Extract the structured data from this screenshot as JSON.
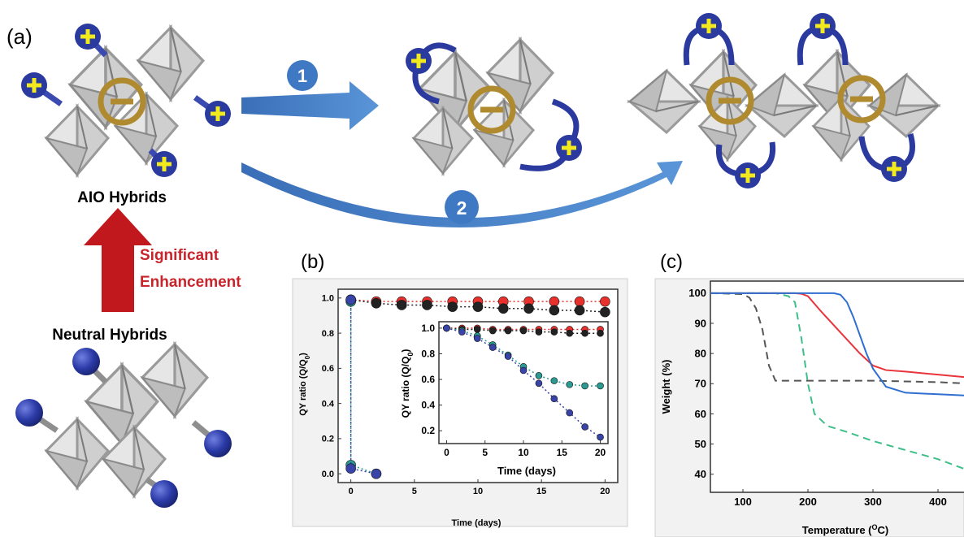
{
  "panel_a": {
    "label": "(a)",
    "step1": "1",
    "step2": "2",
    "aio_label": "AIO Hybrids",
    "neutral_label": "Neutral Hybrids",
    "enhancement_line1": "Significant",
    "enhancement_line2": "Enhancement",
    "plus_glyph": "+",
    "colors": {
      "cation_blue": "#2b3a9e",
      "plus_yellow": "#f2ea1c",
      "anion_ring": "#b08a2e",
      "arrow_blue": "#3f79c4",
      "up_arrow_red": "#c0181c",
      "enhancement_text": "#c8242b",
      "octahedron_gray": "#d8d8d8"
    }
  },
  "panel_b": {
    "label": "(b)",
    "ylabel": "QY ratio (Q/Q",
    "ylabel_sub": "0",
    "ylabel_close": ")",
    "xlabel": "Time (days)",
    "inset_ylabel": "QY ratio (Q/Q",
    "inset_xlabel": "Time (days)"
  },
  "panel_c": {
    "label": "(c)",
    "ylabel": "Weight (%)",
    "xlabel_pre": "Temperature (",
    "xlabel_sup": "O",
    "xlabel_post": "C)"
  },
  "chart_data": [
    {
      "type": "scatter",
      "panel": "b-main",
      "xlim": [
        -1,
        21
      ],
      "ylim": [
        -0.05,
        1.05
      ],
      "xticks": [
        "0",
        "5",
        "10",
        "15",
        "20"
      ],
      "yticks": [
        "0.0",
        "0.2",
        "0.4",
        "0.6",
        "0.8",
        "1.0"
      ],
      "series": [
        {
          "color": "#e8312c",
          "x": [
            0,
            2,
            4,
            6,
            8,
            10,
            12,
            14,
            16,
            18,
            20
          ],
          "values": [
            0.99,
            0.98,
            0.98,
            0.98,
            0.98,
            0.98,
            0.98,
            0.98,
            0.98,
            0.98,
            0.98
          ]
        },
        {
          "color": "#222222",
          "x": [
            0,
            2,
            4,
            6,
            8,
            10,
            12,
            14,
            16,
            18,
            20
          ],
          "values": [
            0.99,
            0.97,
            0.96,
            0.96,
            0.95,
            0.95,
            0.94,
            0.94,
            0.93,
            0.93,
            0.92
          ]
        },
        {
          "color": "#2a9a93",
          "x": [
            0,
            0,
            2
          ],
          "values": [
            0.98,
            0.05,
            0.0
          ]
        },
        {
          "color": "#3844a8",
          "x": [
            0,
            0,
            2
          ],
          "values": [
            0.99,
            0.03,
            0.0
          ]
        }
      ]
    },
    {
      "type": "scatter",
      "panel": "b-inset",
      "xlim": [
        -1,
        21
      ],
      "ylim": [
        0.1,
        1.05
      ],
      "xticks": [
        "0",
        "5",
        "10",
        "15",
        "20"
      ],
      "yticks": [
        "0.2",
        "0.4",
        "0.6",
        "0.8",
        "1.0"
      ],
      "series": [
        {
          "color": "#e8312c",
          "x": [
            0,
            2,
            4,
            6,
            8,
            10,
            12,
            14,
            16,
            18,
            20
          ],
          "values": [
            1.0,
            1.0,
            1.0,
            0.99,
            0.99,
            0.99,
            0.99,
            0.99,
            0.99,
            0.99,
            0.99
          ]
        },
        {
          "color": "#222222",
          "x": [
            0,
            2,
            4,
            6,
            8,
            10,
            12,
            14,
            16,
            18,
            20
          ],
          "values": [
            1.0,
            0.99,
            0.99,
            0.98,
            0.98,
            0.98,
            0.97,
            0.97,
            0.96,
            0.96,
            0.96
          ]
        },
        {
          "color": "#2a9a93",
          "x": [
            0,
            2,
            4,
            6,
            8,
            10,
            12,
            14,
            16,
            18,
            20
          ],
          "values": [
            1.0,
            0.98,
            0.94,
            0.87,
            0.79,
            0.7,
            0.63,
            0.59,
            0.56,
            0.55,
            0.55
          ]
        },
        {
          "color": "#3844a8",
          "x": [
            0,
            2,
            4,
            6,
            8,
            10,
            12,
            14,
            16,
            18,
            20
          ],
          "values": [
            1.0,
            0.97,
            0.92,
            0.85,
            0.78,
            0.67,
            0.57,
            0.45,
            0.34,
            0.23,
            0.15
          ]
        }
      ]
    },
    {
      "type": "line",
      "panel": "c",
      "xlim": [
        50,
        450
      ],
      "ylim": [
        34,
        104
      ],
      "xticks": [
        "100",
        "200",
        "300",
        "400"
      ],
      "yticks": [
        "40",
        "50",
        "60",
        "70",
        "80",
        "90",
        "100"
      ],
      "series": [
        {
          "color": "#555555",
          "dashed": true,
          "x": [
            50,
            100,
            110,
            120,
            130,
            140,
            150,
            200,
            300,
            400,
            450
          ],
          "values": [
            100,
            99.7,
            98.5,
            95,
            88,
            76,
            71,
            71,
            71,
            70.5,
            70
          ]
        },
        {
          "color": "#3dbf8a",
          "dashed": true,
          "x": [
            50,
            150,
            170,
            180,
            190,
            200,
            210,
            230,
            260,
            300,
            350,
            400,
            450
          ],
          "values": [
            100,
            100,
            99,
            97,
            85,
            70,
            60,
            56,
            54,
            51,
            48,
            45,
            41
          ]
        },
        {
          "color": "#e8343a",
          "dashed": false,
          "x": [
            50,
            180,
            190,
            200,
            220,
            250,
            280,
            300,
            320,
            350,
            400,
            450
          ],
          "values": [
            100,
            100,
            99.8,
            99,
            94,
            87,
            80,
            76,
            74.5,
            74,
            73,
            72
          ]
        },
        {
          "color": "#2f6fd0",
          "dashed": false,
          "x": [
            50,
            240,
            250,
            260,
            270,
            280,
            290,
            300,
            320,
            350,
            400,
            450
          ],
          "values": [
            100,
            100,
            99.5,
            97,
            92,
            86,
            80,
            75,
            69,
            67,
            66.5,
            66
          ]
        }
      ]
    }
  ]
}
